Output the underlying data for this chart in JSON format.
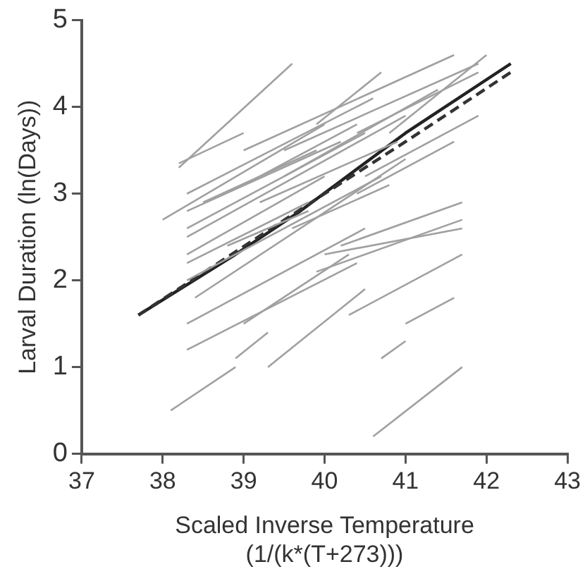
{
  "chart_data": {
    "type": "line",
    "xlabel": "Scaled Inverse Temperature\n(1/(k*(T+273)))",
    "ylabel": "Larval Duration (ln(Days))",
    "xlim": [
      37,
      43
    ],
    "xticks": [
      37,
      38,
      39,
      40,
      41,
      42,
      43
    ],
    "ylim": [
      0,
      5
    ],
    "yticks": [
      0,
      1,
      2,
      3,
      4,
      5
    ],
    "grid": false,
    "legend": false,
    "marker": "none",
    "series": [
      {
        "color": "#a0a0a0",
        "x": [
          38.2,
          39.6
        ],
        "values": [
          3.3,
          4.5
        ]
      },
      {
        "color": "#a0a0a0",
        "x": [
          38.2,
          39.0
        ],
        "values": [
          3.35,
          3.7
        ]
      },
      {
        "color": "#a0a0a0",
        "x": [
          38.0,
          40.0
        ],
        "values": [
          2.7,
          3.8
        ]
      },
      {
        "color": "#a0a0a0",
        "x": [
          38.3,
          40.6
        ],
        "values": [
          3.0,
          4.1
        ]
      },
      {
        "color": "#a0a0a0",
        "x": [
          38.3,
          40.2
        ],
        "values": [
          2.8,
          3.6
        ]
      },
      {
        "color": "#a0a0a0",
        "x": [
          38.3,
          40.5
        ],
        "values": [
          2.6,
          3.7
        ]
      },
      {
        "color": "#a0a0a0",
        "x": [
          38.3,
          41.0
        ],
        "values": [
          2.5,
          3.9
        ]
      },
      {
        "color": "#a0a0a0",
        "x": [
          38.3,
          40.0
        ],
        "values": [
          2.3,
          3.2
        ]
      },
      {
        "color": "#a0a0a0",
        "x": [
          38.3,
          39.8
        ],
        "values": [
          2.2,
          2.9
        ]
      },
      {
        "color": "#a0a0a0",
        "x": [
          38.3,
          40.7
        ],
        "values": [
          2.0,
          3.2
        ]
      },
      {
        "color": "#a0a0a0",
        "x": [
          38.4,
          41.0
        ],
        "values": [
          1.8,
          3.4
        ]
      },
      {
        "color": "#a0a0a0",
        "x": [
          38.3,
          40.5
        ],
        "values": [
          1.5,
          2.6
        ]
      },
      {
        "color": "#a0a0a0",
        "x": [
          38.3,
          40.4
        ],
        "values": [
          1.2,
          2.2
        ]
      },
      {
        "color": "#a0a0a0",
        "x": [
          38.1,
          38.9
        ],
        "values": [
          0.5,
          1.0
        ]
      },
      {
        "color": "#a0a0a0",
        "x": [
          38.9,
          39.3
        ],
        "values": [
          1.1,
          1.4
        ]
      },
      {
        "color": "#a0a0a0",
        "x": [
          39.3,
          40.5
        ],
        "values": [
          1.0,
          1.9
        ]
      },
      {
        "color": "#a0a0a0",
        "x": [
          40.6,
          41.7
        ],
        "values": [
          0.2,
          1.0
        ]
      },
      {
        "color": "#a0a0a0",
        "x": [
          40.7,
          41.0
        ],
        "values": [
          1.1,
          1.3
        ]
      },
      {
        "color": "#a0a0a0",
        "x": [
          41.0,
          41.6
        ],
        "values": [
          1.5,
          1.8
        ]
      },
      {
        "color": "#a0a0a0",
        "x": [
          40.3,
          41.7
        ],
        "values": [
          1.6,
          2.3
        ]
      },
      {
        "color": "#a0a0a0",
        "x": [
          39.9,
          41.7
        ],
        "values": [
          2.1,
          2.7
        ]
      },
      {
        "color": "#a0a0a0",
        "x": [
          40.0,
          41.7
        ],
        "values": [
          2.3,
          2.6
        ]
      },
      {
        "color": "#a0a0a0",
        "x": [
          40.2,
          41.7
        ],
        "values": [
          2.4,
          2.9
        ]
      },
      {
        "color": "#a0a0a0",
        "x": [
          40.4,
          41.6
        ],
        "values": [
          3.0,
          3.6
        ]
      },
      {
        "color": "#a0a0a0",
        "x": [
          39.9,
          40.7
        ],
        "values": [
          3.8,
          4.4
        ]
      },
      {
        "color": "#a0a0a0",
        "x": [
          39.0,
          41.6
        ],
        "values": [
          3.5,
          4.6
        ]
      },
      {
        "color": "#a0a0a0",
        "x": [
          39.5,
          41.9
        ],
        "values": [
          3.5,
          4.5
        ]
      },
      {
        "color": "#a0a0a0",
        "x": [
          40.4,
          41.9
        ],
        "values": [
          3.7,
          4.4
        ]
      },
      {
        "color": "#a0a0a0",
        "x": [
          40.8,
          42.0
        ],
        "values": [
          3.7,
          4.6
        ]
      },
      {
        "color": "#a0a0a0",
        "x": [
          39.0,
          40.4
        ],
        "values": [
          3.1,
          3.8
        ]
      },
      {
        "color": "#a0a0a0",
        "x": [
          39.2,
          40.9
        ],
        "values": [
          2.9,
          3.6
        ]
      },
      {
        "color": "#a0a0a0",
        "x": [
          39.5,
          41.4
        ],
        "values": [
          3.2,
          4.2
        ]
      },
      {
        "color": "#a0a0a0",
        "x": [
          38.5,
          39.9
        ],
        "values": [
          2.9,
          3.5
        ]
      },
      {
        "color": "#a0a0a0",
        "x": [
          39.6,
          40.8
        ],
        "values": [
          2.6,
          3.1
        ]
      },
      {
        "color": "#a0a0a0",
        "x": [
          38.8,
          39.8
        ],
        "values": [
          2.4,
          2.8
        ]
      },
      {
        "color": "#a0a0a0",
        "x": [
          40.5,
          41.9
        ],
        "values": [
          3.2,
          3.9
        ]
      },
      {
        "color": "#a0a0a0",
        "x": [
          39.0,
          40.3
        ],
        "values": [
          1.5,
          2.3
        ]
      },
      {
        "color": "#333333",
        "line_style": "dashed",
        "x": [
          37.7,
          40.0,
          41.0,
          42.3
        ],
        "values": [
          1.6,
          3.0,
          3.6,
          4.4
        ]
      },
      {
        "color": "#222222",
        "line_style": "solid",
        "x": [
          37.7,
          38.9,
          39.7,
          41.0,
          42.3
        ],
        "values": [
          1.6,
          2.3,
          2.8,
          3.7,
          4.5
        ]
      }
    ]
  }
}
